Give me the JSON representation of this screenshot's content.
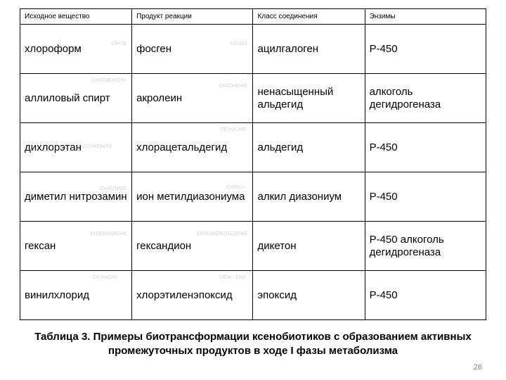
{
  "table": {
    "columns": [
      "Исходное вещество",
      "Продукт реакции",
      "Класс соединения",
      "Энзимы"
    ],
    "rows": [
      {
        "c1": "хлороформ",
        "f1": "CHCl3",
        "f1pos": "right:8px;top:24px;",
        "c2": "фосген",
        "f2": "ClCOCl",
        "f2pos": "right:8px;top:24px;",
        "c3": "ацилгалоген",
        "c4": "Р-450"
      },
      {
        "c1": "аллиловый спирт",
        "f1": "CH2CHCH2OH",
        "f1pos": "right:8px;top:6px;",
        "c2": "акролеин",
        "f2": "CH2CHCHO",
        "f2pos": "right:8px;top:14px;",
        "c3": "ненасыщенный альдегид",
        "c4": "алкоголь дегидрогеназа"
      },
      {
        "c1": "дихлорэтан",
        "f1": "ClCH2CH2Cl",
        "f1pos": "left:88px;top:30px;",
        "c2": "хлорацетальдегид",
        "f2": "ClCH2CHO",
        "f2pos": "right:10px;top:6px;",
        "c3": "альдегид",
        "c4": "Р-450"
      },
      {
        "c1": "диметил нитрозамин",
        "f1": "(CH3)2NNO",
        "f1pos": "right:8px;top:20px;",
        "c2": "ион метилдиазониума",
        "f2": "CH3N2+",
        "f2pos": "right:10px;top:18px;",
        "c3": "алкил диазониум",
        "c4": "Р-450"
      },
      {
        "c1": "гексан",
        "f1": "CH3(CH2)4CH3",
        "f1pos": "right:8px;top:14px;",
        "c2": "гександион",
        "f2": "CH3CO(CH2)2COCH3",
        "f2pos": "right:8px;top:14px;",
        "c3": "дикетон",
        "c4": "Р-450 алкоголь дегидрогеназа"
      },
      {
        "c1": "винилхлорид",
        "f1": "ClCH=CH2",
        "f1pos": "right:20px;top:6px;",
        "c2": "хлорэтиленэпоксид",
        "f2": "ClCH—CH2",
        "f2pos": "right:10px;top:6px;",
        "c3": "эпоксид",
        "c4": "Р-450"
      }
    ]
  },
  "caption": "Таблица 3. Примеры биотрансформации ксенобиотиков с образованием активных промежуточных продуктов в ходе I фазы метаболизма",
  "page": "26"
}
